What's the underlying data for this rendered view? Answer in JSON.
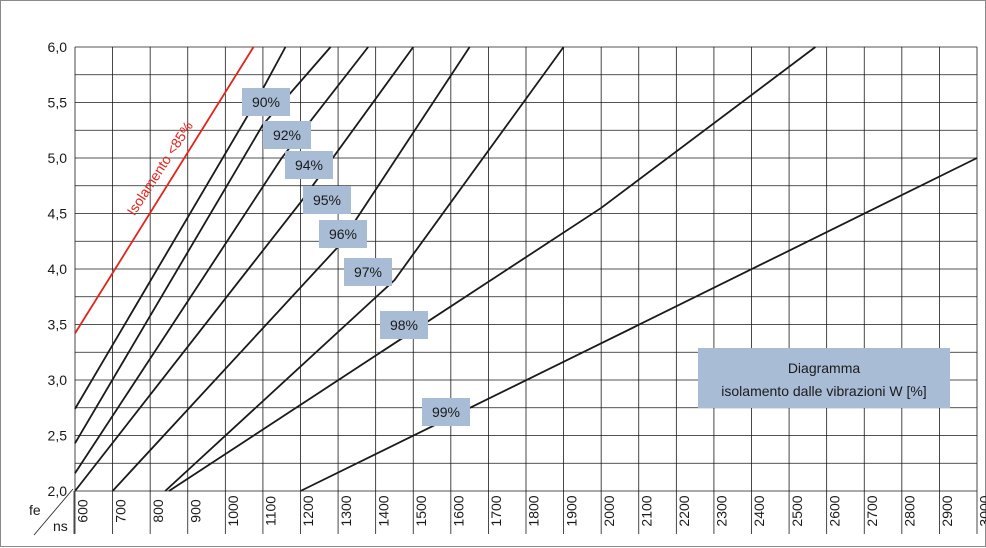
{
  "chart_data": {
    "type": "line",
    "title": "",
    "x_label": "ns",
    "y_label": "fe",
    "x_ticks": [
      "600",
      "700",
      "800",
      "900",
      "1000",
      "1100",
      "1200",
      "1300",
      "1400",
      "1500",
      "1600",
      "1700",
      "1800",
      "1900",
      "2000",
      "2100",
      "2200",
      "2300",
      "2400",
      "2500",
      "2600",
      "2700",
      "2800",
      "2900",
      "3000"
    ],
    "y_ticks": [
      "2,0",
      "2,5",
      "3,0",
      "3,5",
      "4,0",
      "4,5",
      "5,0",
      "5,5",
      "6,0"
    ],
    "xlim": [
      600,
      3000
    ],
    "ylim": [
      2.0,
      6.0
    ],
    "grid": true,
    "annotation": {
      "line1": "Diagramma",
      "line2": "isolamento dalle vibrazioni W [%]"
    },
    "series": [
      {
        "name": "Isolamento <85%",
        "color": "#e3241b",
        "label_is_rotated": true,
        "points": [
          [
            600,
            3.42
          ],
          [
            1075,
            6.0
          ]
        ]
      },
      {
        "name": "90%",
        "color": "#1a1a1a",
        "points": [
          [
            600,
            2.74
          ],
          [
            1080,
            5.5
          ],
          [
            1160,
            6.0
          ]
        ]
      },
      {
        "name": "92%",
        "color": "#1a1a1a",
        "points": [
          [
            600,
            2.43
          ],
          [
            1100,
            5.3
          ],
          [
            1280,
            6.0
          ]
        ]
      },
      {
        "name": "94%",
        "color": "#1a1a1a",
        "points": [
          [
            600,
            2.16
          ],
          [
            1150,
            5.0
          ],
          [
            1380,
            6.0
          ]
        ]
      },
      {
        "name": "95%",
        "color": "#1a1a1a",
        "points": [
          [
            600,
            2.0
          ],
          [
            1200,
            4.6
          ],
          [
            1500,
            6.0
          ]
        ]
      },
      {
        "name": "96%",
        "color": "#1a1a1a",
        "points": [
          [
            700,
            2.0
          ],
          [
            1300,
            4.2
          ],
          [
            1650,
            6.0
          ]
        ]
      },
      {
        "name": "97%",
        "color": "#1a1a1a",
        "points": [
          [
            840,
            2.0
          ],
          [
            1450,
            3.9
          ],
          [
            1900,
            6.0
          ]
        ]
      },
      {
        "name": "98%",
        "color": "#1a1a1a",
        "points": [
          [
            850,
            2.0
          ],
          [
            2000,
            4.55
          ],
          [
            2570,
            6.0
          ]
        ]
      },
      {
        "name": "99%",
        "color": "#1a1a1a",
        "points": [
          [
            1200,
            2.0
          ],
          [
            2000,
            3.33
          ],
          [
            3000,
            5.0
          ]
        ]
      }
    ]
  },
  "colors": {
    "label_fill": "#a9bcd6",
    "grid": "#1a1a1a",
    "red": "#e3241b"
  }
}
